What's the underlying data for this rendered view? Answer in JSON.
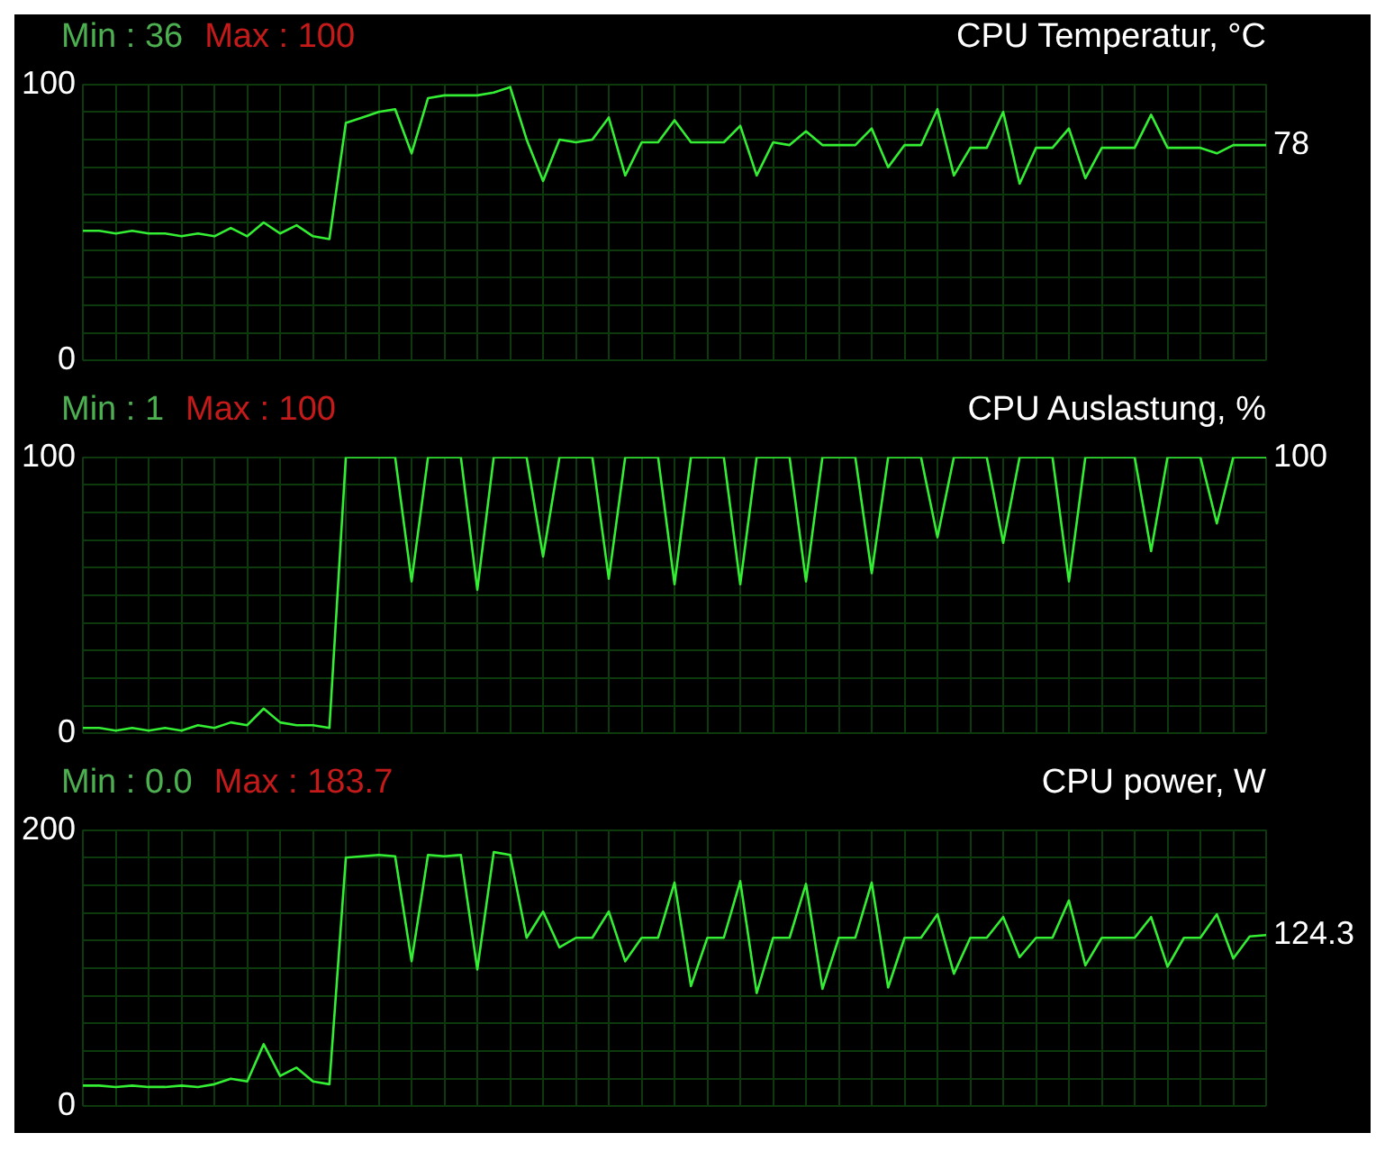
{
  "chart_data": [
    {
      "type": "line",
      "title": "CPU Temperatur, °C",
      "annotations": [
        "Min : 36",
        "Max : 100",
        "78"
      ],
      "categories": [
        null,
        null,
        null,
        null,
        null,
        null,
        null,
        null,
        null,
        null,
        null,
        null,
        null,
        null,
        null,
        null,
        null,
        null,
        null,
        null,
        null,
        null,
        null,
        null,
        null,
        null,
        null,
        null,
        null,
        null,
        null,
        null,
        null,
        null,
        null,
        null,
        null,
        null,
        null,
        null,
        null,
        null,
        null,
        null,
        null,
        null,
        null,
        null,
        null,
        null,
        null,
        null,
        null,
        null,
        null,
        null,
        null,
        null,
        null,
        null,
        null,
        null,
        null,
        null,
        null,
        null,
        null,
        null,
        null,
        null,
        null,
        null,
        null
      ],
      "series": [
        {
          "color": "#33ee33",
          "values": [
            47,
            47,
            46,
            47,
            46,
            46,
            45,
            46,
            45,
            48,
            45,
            50,
            46,
            49,
            45,
            44,
            86,
            88,
            90,
            91,
            75,
            95,
            96,
            96,
            96,
            97,
            99,
            80,
            65,
            80,
            79,
            80,
            88,
            67,
            79,
            79,
            87,
            79,
            79,
            79,
            85,
            67,
            79,
            78,
            83,
            78,
            78,
            78,
            84,
            70,
            78,
            78,
            91,
            67,
            77,
            77,
            90,
            64,
            77,
            77,
            84,
            66,
            77,
            77,
            77,
            89,
            77,
            77,
            77,
            75,
            78,
            78,
            78
          ]
        }
      ],
      "ylim": [
        0,
        100
      ],
      "yticks": [
        0,
        {
          "value": 10,
          "label": null
        },
        {
          "value": 20,
          "label": null
        },
        {
          "value": 30,
          "label": null
        },
        {
          "value": 40,
          "label": null
        },
        {
          "value": 50,
          "label": null
        },
        {
          "value": 60,
          "label": null
        },
        {
          "value": 70,
          "label": null
        },
        {
          "value": 80,
          "label": null
        },
        {
          "value": 90,
          "label": null
        },
        100
      ],
      "grid": true,
      "tick_labels": "y",
      "marker": "none"
    },
    {
      "type": "line",
      "title": "CPU Auslastung, %",
      "annotations": [
        "Min : 1",
        "Max : 100",
        "100"
      ],
      "categories": [
        null,
        null,
        null,
        null,
        null,
        null,
        null,
        null,
        null,
        null,
        null,
        null,
        null,
        null,
        null,
        null,
        null,
        null,
        null,
        null,
        null,
        null,
        null,
        null,
        null,
        null,
        null,
        null,
        null,
        null,
        null,
        null,
        null,
        null,
        null,
        null,
        null,
        null,
        null,
        null,
        null,
        null,
        null,
        null,
        null,
        null,
        null,
        null,
        null,
        null,
        null,
        null,
        null,
        null,
        null,
        null,
        null,
        null,
        null,
        null,
        null,
        null,
        null,
        null,
        null,
        null,
        null,
        null,
        null,
        null,
        null,
        null,
        null
      ],
      "series": [
        {
          "color": "#33ee33",
          "values": [
            2,
            2,
            1,
            2,
            1,
            2,
            1,
            3,
            2,
            4,
            3,
            9,
            4,
            3,
            3,
            2,
            100,
            100,
            100,
            100,
            55,
            100,
            100,
            100,
            52,
            100,
            100,
            100,
            64,
            100,
            100,
            100,
            56,
            100,
            100,
            100,
            54,
            100,
            100,
            100,
            54,
            100,
            100,
            100,
            55,
            100,
            100,
            100,
            58,
            100,
            100,
            100,
            71,
            100,
            100,
            100,
            69,
            100,
            100,
            100,
            55,
            100,
            100,
            100,
            100,
            66,
            100,
            100,
            100,
            76,
            100,
            100,
            100
          ]
        }
      ],
      "ylim": [
        0,
        100
      ],
      "yticks": [
        0,
        {
          "value": 10,
          "label": null
        },
        {
          "value": 20,
          "label": null
        },
        {
          "value": 30,
          "label": null
        },
        {
          "value": 40,
          "label": null
        },
        {
          "value": 50,
          "label": null
        },
        {
          "value": 60,
          "label": null
        },
        {
          "value": 70,
          "label": null
        },
        {
          "value": 80,
          "label": null
        },
        {
          "value": 90,
          "label": null
        },
        100
      ],
      "grid": true,
      "tick_labels": "y",
      "marker": "none"
    },
    {
      "type": "line",
      "title": "CPU power, W",
      "annotations": [
        "Min : 0.0",
        "Max : 183.7",
        "124.3"
      ],
      "categories": [
        null,
        null,
        null,
        null,
        null,
        null,
        null,
        null,
        null,
        null,
        null,
        null,
        null,
        null,
        null,
        null,
        null,
        null,
        null,
        null,
        null,
        null,
        null,
        null,
        null,
        null,
        null,
        null,
        null,
        null,
        null,
        null,
        null,
        null,
        null,
        null,
        null,
        null,
        null,
        null,
        null,
        null,
        null,
        null,
        null,
        null,
        null,
        null,
        null,
        null,
        null,
        null,
        null,
        null,
        null,
        null,
        null,
        null,
        null,
        null,
        null,
        null,
        null,
        null,
        null,
        null,
        null,
        null,
        null,
        null,
        null,
        null,
        null
      ],
      "series": [
        {
          "color": "#33ee33",
          "values": [
            15,
            15,
            14,
            15,
            14,
            14,
            15,
            14,
            16,
            20,
            18,
            45,
            22,
            28,
            18,
            16,
            180,
            181,
            182,
            181,
            105,
            182,
            181,
            182,
            99,
            184,
            182,
            122,
            141,
            115,
            122,
            122,
            141,
            105,
            122,
            122,
            162,
            87,
            122,
            122,
            163,
            82,
            122,
            122,
            161,
            85,
            122,
            122,
            162,
            86,
            122,
            122,
            139,
            96,
            122,
            122,
            137,
            108,
            122,
            122,
            149,
            102,
            122,
            122,
            122,
            137,
            101,
            122,
            122,
            139,
            107,
            123,
            124
          ]
        }
      ],
      "ylim": [
        0,
        200
      ],
      "yticks": [
        0,
        {
          "value": 20,
          "label": null
        },
        {
          "value": 40,
          "label": null
        },
        {
          "value": 60,
          "label": null
        },
        {
          "value": 80,
          "label": null
        },
        {
          "value": 100,
          "label": null
        },
        {
          "value": 120,
          "label": null
        },
        {
          "value": 140,
          "label": null
        },
        {
          "value": 160,
          "label": null
        },
        {
          "value": 180,
          "label": null
        },
        200
      ],
      "grid": true,
      "tick_labels": "y",
      "marker": "none"
    }
  ]
}
